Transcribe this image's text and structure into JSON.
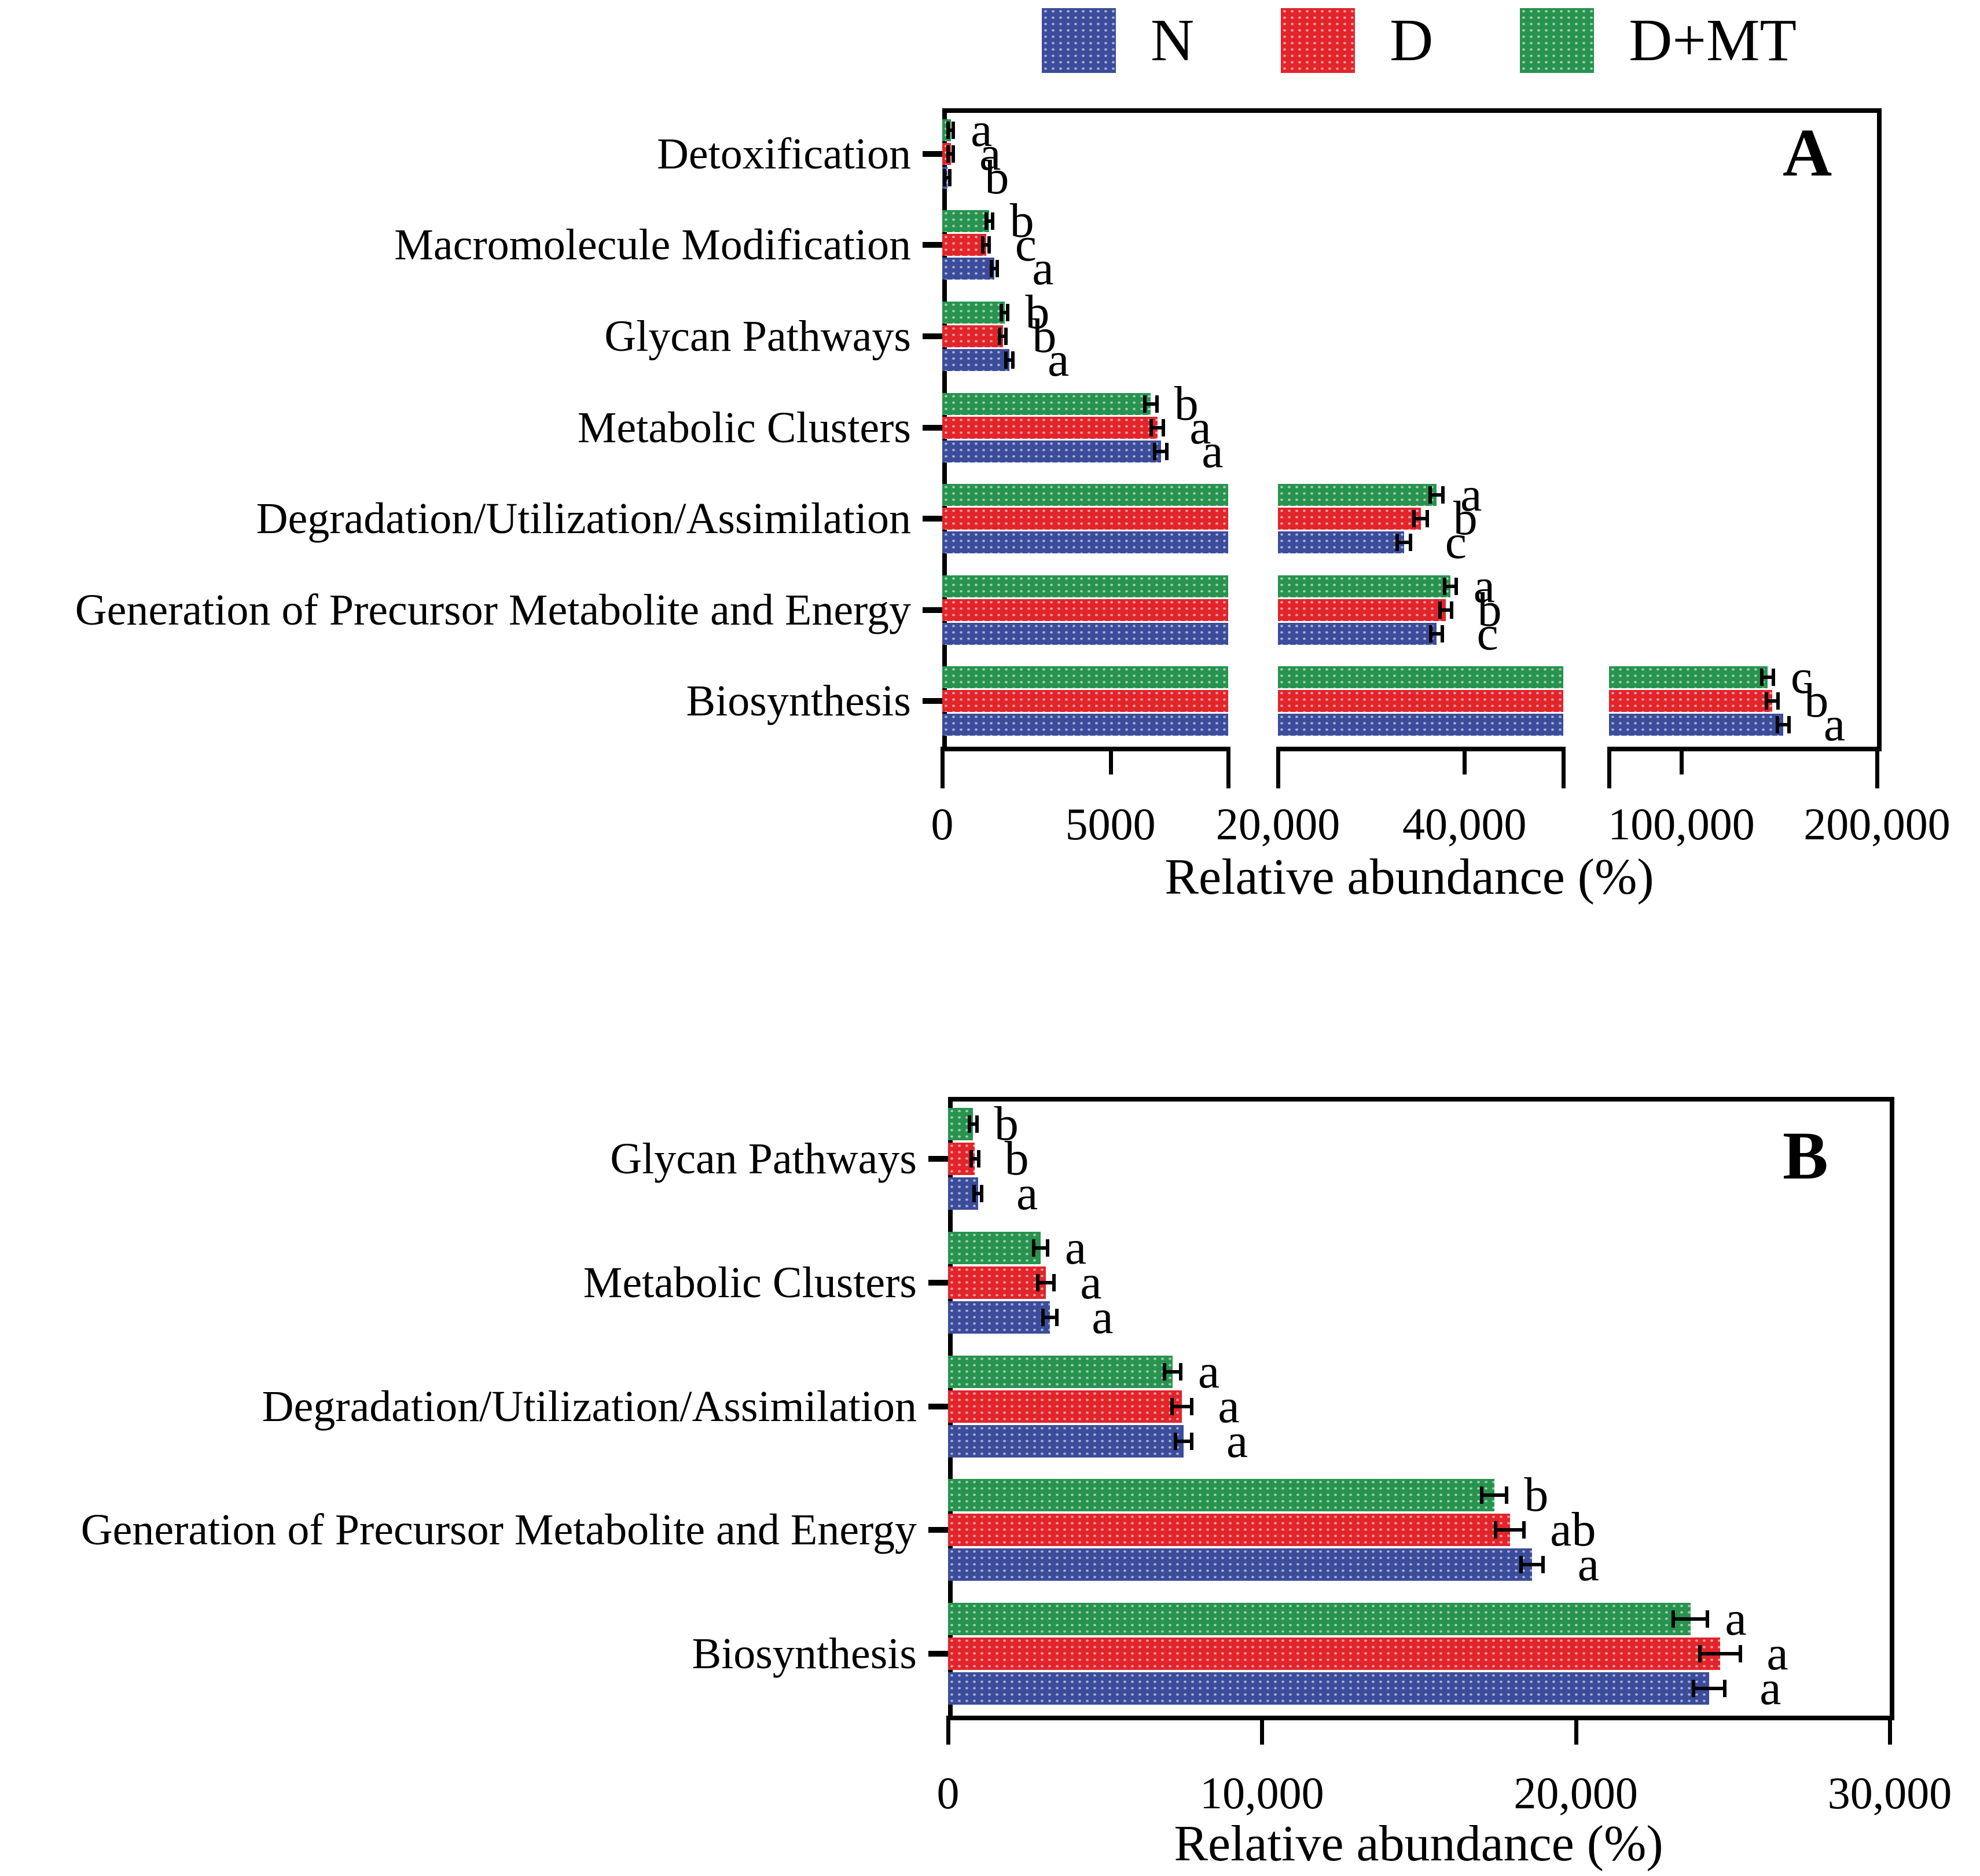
{
  "legend": {
    "items": [
      {
        "label": "N",
        "color": "#3B4C9B"
      },
      {
        "label": "D",
        "color": "#E2242B"
      },
      {
        "label": "D+MT",
        "color": "#27934F"
      }
    ]
  },
  "chart_data": [
    {
      "type": "bar",
      "panel_label": "A",
      "orientation": "horizontal",
      "xlabel": "Relative abundance (%)",
      "axis_break": true,
      "legend_position": "top",
      "segments": [
        {
          "domain": [
            0,
            8500
          ],
          "ticks": [
            {
              "v": 0,
              "label": "0"
            },
            {
              "v": 5000,
              "label": "5000"
            }
          ]
        },
        {
          "domain": [
            20000,
            50600
          ],
          "ticks": [
            {
              "v": 20000,
              "label": "20,000"
            },
            {
              "v": 40000,
              "label": "40,000"
            }
          ]
        },
        {
          "domain": [
            63000,
            200000
          ],
          "ticks": [
            {
              "v": 100000,
              "label": "100,000"
            },
            {
              "v": 200000,
              "label": "200,000"
            }
          ]
        }
      ],
      "categories": [
        "Detoxification",
        "Macromolecule Modification",
        "Glycan Pathways",
        "Metabolic Clusters",
        "Degradation/Utilization/Assimilation",
        "Generation of Precursor Metabolite and Energy",
        "Biosynthesis"
      ],
      "series": [
        {
          "name": "N",
          "color": "#3B4C9B",
          "values": [
            150,
            1550,
            2000,
            6500,
            33500,
            37000,
            152000
          ],
          "errors": [
            80,
            90,
            100,
            180,
            700,
            600,
            3000
          ],
          "letters": [
            "b",
            "a",
            "a",
            "a",
            "c",
            "c",
            "a"
          ]
        },
        {
          "name": "D",
          "color": "#E2242B",
          "values": [
            250,
            1300,
            1800,
            6400,
            35300,
            38000,
            146500
          ],
          "errors": [
            80,
            90,
            100,
            180,
            700,
            600,
            3000
          ],
          "letters": [
            "a",
            "c",
            "b",
            "a",
            "b",
            "b",
            "b"
          ]
        },
        {
          "name": "D+MT",
          "color": "#27934F",
          "values": [
            250,
            1400,
            1850,
            6200,
            37000,
            38500,
            144000
          ],
          "errors": [
            80,
            90,
            100,
            180,
            700,
            600,
            3000
          ],
          "letters": [
            "a",
            "b",
            "b",
            "b",
            "a",
            "a",
            "c"
          ]
        }
      ]
    },
    {
      "type": "bar",
      "panel_label": "B",
      "orientation": "horizontal",
      "xlabel": "Relative abundance (%)",
      "xlim": [
        0,
        30000
      ],
      "ticks": [
        {
          "v": 0,
          "label": "0"
        },
        {
          "v": 10000,
          "label": "10,000"
        },
        {
          "v": 20000,
          "label": "20,000"
        },
        {
          "v": 30000,
          "label": "30,000"
        }
      ],
      "categories": [
        "Glycan Pathways",
        "Metabolic Clusters",
        "Degradation/Utilization/Assimilation",
        "Generation of Precursor Metabolite and Energy",
        "Biosynthesis"
      ],
      "series": [
        {
          "name": "N",
          "color": "#3B4C9B",
          "values": [
            950,
            3250,
            7500,
            18600,
            24250
          ],
          "errors": [
            120,
            220,
            260,
            350,
            500
          ],
          "letters": [
            "a",
            "a",
            "a",
            "a",
            "a"
          ]
        },
        {
          "name": "D",
          "color": "#E2242B",
          "values": [
            850,
            3120,
            7450,
            17900,
            24600
          ],
          "errors": [
            120,
            260,
            320,
            450,
            650
          ],
          "letters": [
            "b",
            "a",
            "a",
            "ab",
            "a"
          ]
        },
        {
          "name": "D+MT",
          "color": "#27934F",
          "values": [
            800,
            2950,
            7150,
            17400,
            23650
          ],
          "errors": [
            120,
            220,
            260,
            400,
            550
          ],
          "letters": [
            "b",
            "a",
            "a",
            "b",
            "a"
          ]
        }
      ]
    }
  ]
}
